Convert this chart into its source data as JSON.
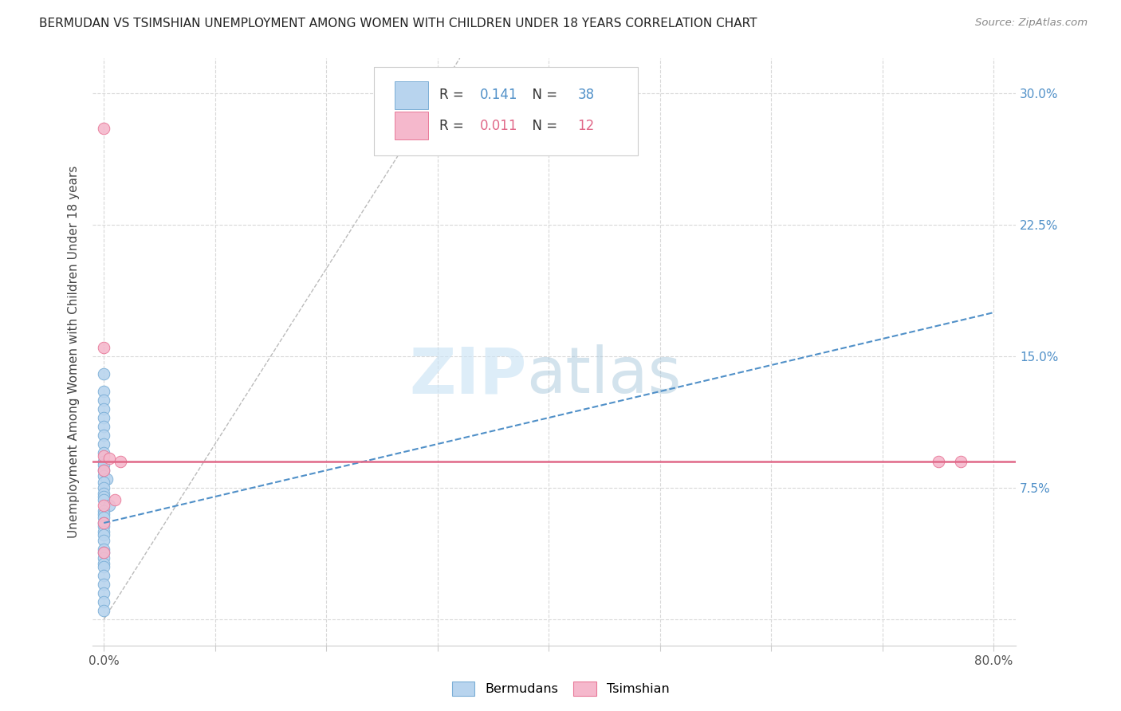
{
  "title": "BERMUDAN VS TSIMSHIAN UNEMPLOYMENT AMONG WOMEN WITH CHILDREN UNDER 18 YEARS CORRELATION CHART",
  "source": "Source: ZipAtlas.com",
  "ylabel": "Unemployment Among Women with Children Under 18 years",
  "xlim": [
    -0.01,
    0.82
  ],
  "ylim": [
    -0.015,
    0.32
  ],
  "xticks": [
    0.0,
    0.1,
    0.2,
    0.3,
    0.4,
    0.5,
    0.6,
    0.7,
    0.8
  ],
  "xticklabels": [
    "0.0%",
    "",
    "",
    "",
    "",
    "",
    "",
    "",
    "80.0%"
  ],
  "yticks": [
    0.0,
    0.075,
    0.15,
    0.225,
    0.3
  ],
  "yticklabels": [
    "",
    "7.5%",
    "15.0%",
    "22.5%",
    "30.0%"
  ],
  "grid_color": "#d8d8d8",
  "bermudans_color": "#b8d4ee",
  "tsimshian_color": "#f5b8cc",
  "bermudans_edge_color": "#7aaed6",
  "tsimshian_edge_color": "#e87898",
  "bermudans_trend_color": "#5090c8",
  "tsimshian_trend_color": "#e06888",
  "diagonal_color": "#bbbbbb",
  "legend_R_bermudans": "0.141",
  "legend_N_bermudans": "38",
  "legend_R_tsimshian": "0.011",
  "legend_N_tsimshian": "12",
  "right_tick_color": "#5090c8",
  "bermudans_x": [
    0.0,
    0.0,
    0.0,
    0.0,
    0.0,
    0.0,
    0.0,
    0.0,
    0.0,
    0.0,
    0.0,
    0.0,
    0.0,
    0.003,
    0.0,
    0.0,
    0.0,
    0.0,
    0.0,
    0.005,
    0.0,
    0.0,
    0.0,
    0.0,
    0.0,
    0.0,
    0.0,
    0.0,
    0.0,
    0.0,
    0.0,
    0.0,
    0.0,
    0.0,
    0.0,
    0.0,
    0.0,
    0.0
  ],
  "bermudans_y": [
    0.14,
    0.13,
    0.125,
    0.12,
    0.115,
    0.11,
    0.105,
    0.1,
    0.095,
    0.09,
    0.088,
    0.085,
    0.082,
    0.08,
    0.078,
    0.075,
    0.072,
    0.07,
    0.068,
    0.065,
    0.062,
    0.06,
    0.058,
    0.055,
    0.053,
    0.05,
    0.048,
    0.045,
    0.04,
    0.038,
    0.035,
    0.032,
    0.03,
    0.025,
    0.02,
    0.015,
    0.01,
    0.005
  ],
  "tsimshian_x": [
    0.0,
    0.0,
    0.0,
    0.0,
    0.0,
    0.0,
    0.005,
    0.01,
    0.015,
    0.75,
    0.77,
    0.0
  ],
  "tsimshian_y": [
    0.28,
    0.155,
    0.093,
    0.085,
    0.065,
    0.055,
    0.092,
    0.068,
    0.09,
    0.09,
    0.09,
    0.038
  ],
  "marker_size": 110,
  "blue_trend_x": [
    0.0,
    0.8
  ],
  "blue_trend_y": [
    0.055,
    0.175
  ],
  "pink_trend_y": 0.09
}
